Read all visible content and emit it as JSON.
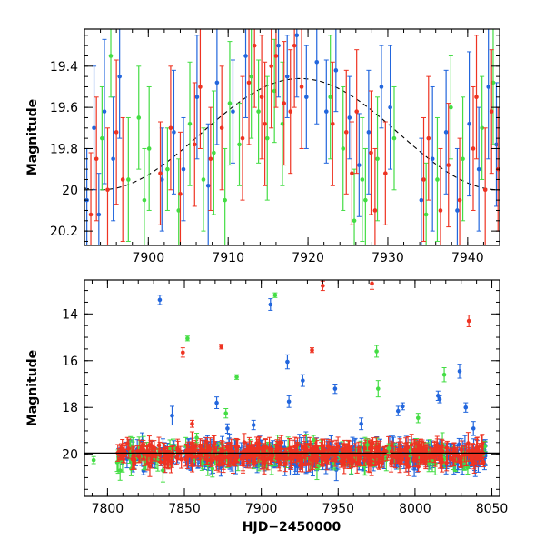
{
  "chart_data": [
    {
      "type": "scatter",
      "panel": "top",
      "title": "",
      "xlabel": "",
      "ylabel": "Magnitude",
      "xlim": [
        7892,
        7944
      ],
      "ylim": [
        20.27,
        19.22
      ],
      "y_inverted": true,
      "grid": false,
      "x_ticks": [
        7900,
        7910,
        7920,
        7930,
        7940
      ],
      "y_ticks": [
        19.4,
        19.6,
        19.8,
        20,
        20.2
      ],
      "y_tick_labels": [
        "19.4",
        "19.6",
        "19.8",
        "20",
        "20.2"
      ],
      "model_curve": {
        "style": "dashed",
        "color": "#000000",
        "mean": 19.73,
        "amplitude": 0.27,
        "period": 50,
        "peak_x": 7919
      },
      "series": [
        {
          "color": "#2266dd",
          "data": [
            [
              7892.3,
              20.05,
              0.25
            ],
            [
              7893.2,
              19.7,
              0.3
            ],
            [
              7893.8,
              20.12,
              0.2
            ],
            [
              7894.5,
              19.62,
              0.35
            ],
            [
              7895.6,
              19.85,
              0.3
            ],
            [
              7896.4,
              19.45,
              0.3
            ],
            [
              7901.7,
              19.95,
              0.25
            ],
            [
              7903.2,
              19.72,
              0.3
            ],
            [
              7904.4,
              19.9,
              0.25
            ],
            [
              7906.1,
              19.55,
              0.3
            ],
            [
              7907.5,
              19.98,
              0.3
            ],
            [
              7908.6,
              19.48,
              0.3
            ],
            [
              7910.6,
              19.62,
              0.25
            ],
            [
              7912.2,
              19.35,
              0.3
            ],
            [
              7916.3,
              19.3,
              0.25
            ],
            [
              7917.4,
              19.45,
              0.2
            ],
            [
              7918.6,
              19.25,
              0.3
            ],
            [
              7919.8,
              19.55,
              0.25
            ],
            [
              7921.1,
              19.38,
              0.3
            ],
            [
              7922.3,
              19.62,
              0.25
            ],
            [
              7923.5,
              19.42,
              0.2
            ],
            [
              7925.2,
              19.65,
              0.2
            ],
            [
              7926.4,
              19.88,
              0.25
            ],
            [
              7927.6,
              19.72,
              0.3
            ],
            [
              7929.2,
              19.5,
              0.2
            ],
            [
              7930.3,
              19.6,
              0.3
            ],
            [
              7934.2,
              20.05,
              0.3
            ],
            [
              7935.6,
              19.85,
              0.35
            ],
            [
              7937.3,
              19.72,
              0.3
            ],
            [
              7938.7,
              20.1,
              0.3
            ],
            [
              7940.2,
              19.68,
              0.35
            ],
            [
              7941.4,
              19.9,
              0.3
            ],
            [
              7942.6,
              19.5,
              0.35
            ],
            [
              7943.6,
              19.78,
              0.3
            ]
          ]
        },
        {
          "color": "#44dd44",
          "data": [
            [
              7894.2,
              19.75,
              0.25
            ],
            [
              7895.3,
              19.35,
              0.2
            ],
            [
              7897.5,
              19.95,
              0.3
            ],
            [
              7898.8,
              19.65,
              0.25
            ],
            [
              7899.5,
              20.05,
              0.25
            ],
            [
              7900.1,
              19.8,
              0.3
            ],
            [
              7902.4,
              19.9,
              0.2
            ],
            [
              7903.8,
              20.1,
              0.25
            ],
            [
              7905.2,
              19.68,
              0.3
            ],
            [
              7906.9,
              19.95,
              0.25
            ],
            [
              7908.2,
              19.82,
              0.3
            ],
            [
              7909.6,
              20.05,
              0.25
            ],
            [
              7910.2,
              19.58,
              0.3
            ],
            [
              7911.4,
              19.78,
              0.2
            ],
            [
              7912.9,
              19.45,
              0.3
            ],
            [
              7913.8,
              19.62,
              0.25
            ],
            [
              7914.9,
              19.75,
              0.3
            ],
            [
              7915.8,
              19.52,
              0.25
            ],
            [
              7916.8,
              19.68,
              0.3
            ],
            [
              7922.8,
              19.55,
              0.3
            ],
            [
              7924.4,
              19.8,
              0.3
            ],
            [
              7925.8,
              20.15,
              0.25
            ],
            [
              7926.8,
              19.95,
              0.3
            ],
            [
              7927.2,
              20.05,
              0.25
            ],
            [
              7928.7,
              19.85,
              0.3
            ],
            [
              7930.8,
              19.75,
              0.25
            ],
            [
              7934.8,
              20.12,
              0.25
            ],
            [
              7936.2,
              19.95,
              0.3
            ],
            [
              7937.9,
              19.6,
              0.25
            ],
            [
              7939.4,
              19.85,
              0.3
            ],
            [
              7941.8,
              19.7,
              0.25
            ],
            [
              7943.2,
              19.48,
              0.3
            ]
          ]
        },
        {
          "color": "#ee3322",
          "data": [
            [
              7892.8,
              20.12,
              0.3
            ],
            [
              7893.5,
              19.85,
              0.3
            ],
            [
              7894.9,
              20.0,
              0.3
            ],
            [
              7896.0,
              19.72,
              0.35
            ],
            [
              7896.8,
              19.95,
              0.3
            ],
            [
              7901.5,
              19.92,
              0.25
            ],
            [
              7902.8,
              19.7,
              0.3
            ],
            [
              7904.0,
              20.02,
              0.3
            ],
            [
              7905.8,
              19.78,
              0.3
            ],
            [
              7906.5,
              19.5,
              0.3
            ],
            [
              7907.8,
              19.85,
              0.25
            ],
            [
              7909.2,
              19.7,
              0.3
            ],
            [
              7911.8,
              19.75,
              0.3
            ],
            [
              7912.6,
              19.48,
              0.3
            ],
            [
              7913.3,
              19.3,
              0.3
            ],
            [
              7914.2,
              19.55,
              0.3
            ],
            [
              7914.6,
              19.68,
              0.3
            ],
            [
              7915.4,
              19.4,
              0.3
            ],
            [
              7916.0,
              19.35,
              0.25
            ],
            [
              7917.0,
              19.58,
              0.3
            ],
            [
              7917.8,
              19.62,
              0.3
            ],
            [
              7918.3,
              19.3,
              0.3
            ],
            [
              7919.2,
              19.5,
              0.3
            ],
            [
              7923.1,
              19.68,
              0.3
            ],
            [
              7924.8,
              19.72,
              0.3
            ],
            [
              7925.5,
              19.92,
              0.25
            ],
            [
              7926.1,
              19.62,
              0.3
            ],
            [
              7927.9,
              19.82,
              0.3
            ],
            [
              7928.4,
              20.1,
              0.3
            ],
            [
              7929.7,
              19.92,
              0.25
            ],
            [
              7934.5,
              19.95,
              0.3
            ],
            [
              7935.1,
              19.75,
              0.3
            ],
            [
              7936.6,
              20.1,
              0.3
            ],
            [
              7937.6,
              19.88,
              0.3
            ],
            [
              7939.0,
              20.05,
              0.3
            ],
            [
              7940.7,
              19.8,
              0.3
            ],
            [
              7941.1,
              19.55,
              0.3
            ],
            [
              7942.2,
              20.0,
              0.3
            ],
            [
              7943.0,
              19.62,
              0.3
            ],
            [
              7943.8,
              19.9,
              0.3
            ]
          ]
        }
      ]
    },
    {
      "type": "scatter",
      "panel": "bottom",
      "title": "",
      "xlabel": "HJD−2450000",
      "ylabel": "Magnitude",
      "xlim": [
        7785,
        8055
      ],
      "ylim": [
        21.8,
        12.55
      ],
      "y_inverted": true,
      "grid": false,
      "x_ticks": [
        7800,
        7850,
        7900,
        7950,
        8000,
        8050
      ],
      "y_ticks": [
        14,
        16,
        18,
        20
      ],
      "y_tick_labels": [
        "14",
        "16",
        "18",
        "20"
      ],
      "reference_line": 19.95,
      "outliers": [
        {
          "color": "#2266dd",
          "data": [
            [
              7834,
              13.4,
              0.2
            ],
            [
              7842,
              18.35,
              0.4
            ],
            [
              7871,
              17.8,
              0.25
            ],
            [
              7878,
              18.9,
              0.2
            ],
            [
              7895,
              18.75,
              0.2
            ],
            [
              7906,
              13.6,
              0.25
            ],
            [
              7917,
              16.05,
              0.3
            ],
            [
              7918,
              17.75,
              0.25
            ],
            [
              7927,
              16.85,
              0.25
            ],
            [
              7948,
              17.2,
              0.2
            ],
            [
              7965,
              18.7,
              0.25
            ],
            [
              7989,
              18.15,
              0.2
            ],
            [
              7992,
              17.95,
              0.15
            ],
            [
              8015,
              17.5,
              0.2
            ],
            [
              8016,
              17.65,
              0.15
            ],
            [
              8029,
              16.45,
              0.3
            ],
            [
              8033,
              18.0,
              0.2
            ],
            [
              8038,
              18.9,
              0.3
            ]
          ]
        },
        {
          "color": "#44dd44",
          "data": [
            [
              7791,
              20.25,
              0.15
            ],
            [
              7852,
              15.05,
              0.1
            ],
            [
              7858,
              19.3,
              0.2
            ],
            [
              7877,
              18.25,
              0.2
            ],
            [
              7884,
              16.7,
              0.1
            ],
            [
              7909,
              13.2,
              0.1
            ],
            [
              7934,
              19.4,
              0.2
            ],
            [
              7969,
              19.6,
              0.25
            ],
            [
              7975,
              15.6,
              0.25
            ],
            [
              7976,
              17.2,
              0.35
            ],
            [
              7983,
              19.75,
              0.2
            ],
            [
              8002,
              18.45,
              0.2
            ],
            [
              8019,
              16.6,
              0.3
            ]
          ]
        },
        {
          "color": "#ee3322",
          "data": [
            [
              7849,
              15.65,
              0.2
            ],
            [
              7855,
              18.7,
              0.15
            ],
            [
              7874,
              15.4,
              0.1
            ],
            [
              7912,
              19.5,
              0.2
            ],
            [
              7933,
              15.55,
              0.1
            ],
            [
              7940,
              12.8,
              0.2
            ],
            [
              7972,
              12.7,
              0.25
            ],
            [
              8035,
              14.3,
              0.25
            ]
          ]
        }
      ],
      "bands": [
        {
          "color": "#2266dd",
          "seed": 11,
          "count": 420,
          "x_range": [
            7806,
            8046
          ],
          "y_center": 20.05,
          "y_spread": 0.35
        },
        {
          "color": "#44dd44",
          "seed": 23,
          "count": 160,
          "x_range": [
            7806,
            8046
          ],
          "y_center": 20.1,
          "y_spread": 0.4
        },
        {
          "color": "#ee3322",
          "seed": 37,
          "count": 480,
          "x_range": [
            7806,
            8046
          ],
          "y_center": 20.0,
          "y_spread": 0.32
        }
      ]
    }
  ]
}
